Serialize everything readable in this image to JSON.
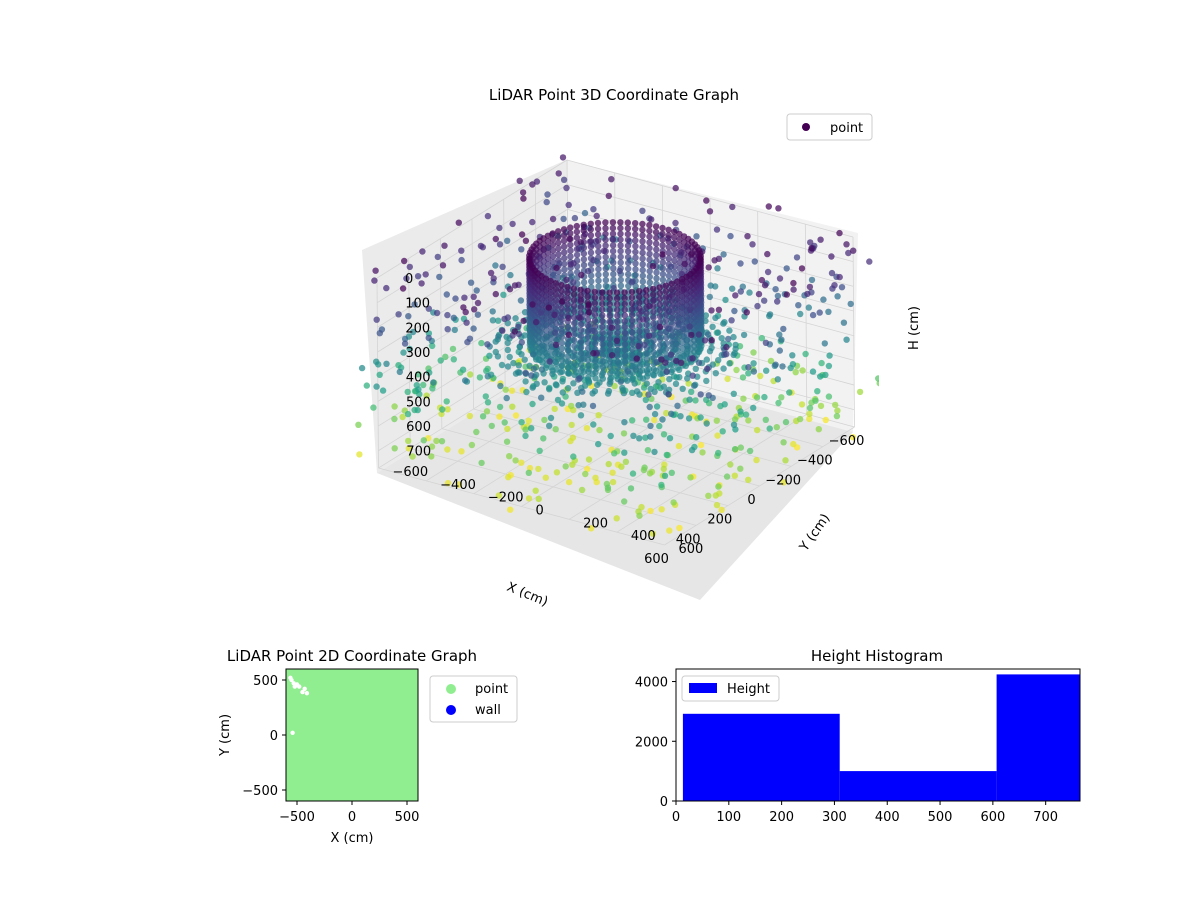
{
  "chart_data": [
    {
      "type": "scatter",
      "projection": "3d",
      "title": "LiDAR Point 3D Coordinate Graph",
      "xlabel": "X (cm)",
      "ylabel": "Y (cm)",
      "zlabel": "H (cm)",
      "x_ticks": [
        "−600",
        "−400",
        "−200",
        "0",
        "200",
        "400",
        "600"
      ],
      "y_ticks": [
        "−600",
        "−400",
        "−200",
        "0",
        "200",
        "400",
        "600"
      ],
      "z_ticks": [
        "0",
        "100",
        "200",
        "300",
        "400",
        "500",
        "600",
        "700"
      ],
      "xlim": [
        -600,
        600
      ],
      "ylim": [
        -600,
        600
      ],
      "zlim": [
        0,
        770
      ],
      "z_inverted": true,
      "grid": true,
      "legend": {
        "position": "top-right",
        "entries": [
          {
            "label": "point",
            "color": "#440154"
          }
        ]
      },
      "colormap": "viridis",
      "structures": [
        {
          "name": "cylinder",
          "center": [
            0,
            0
          ],
          "radius": 300,
          "h_range": [
            0,
            350
          ],
          "columns": 72,
          "levels": 16
        },
        {
          "name": "floor-rays",
          "center": [
            0,
            0
          ],
          "radius": 420,
          "h": 350,
          "rays": 48,
          "points_per_ray": 10
        },
        {
          "name": "scattered-clutter",
          "h_range": [
            0,
            770
          ],
          "count": 900
        }
      ]
    },
    {
      "type": "scatter",
      "title": "LiDAR Point 2D Coordinate Graph",
      "xlabel": "X (cm)",
      "ylabel": "Y (cm)",
      "x_ticks": [
        "−500",
        "0",
        "500"
      ],
      "y_ticks": [
        "−500",
        "0",
        "500"
      ],
      "xlim": [
        -600,
        600
      ],
      "ylim": [
        -600,
        600
      ],
      "series": [
        {
          "name": "point",
          "color": "#90ee90"
        },
        {
          "name": "wall",
          "color": "#0000ff"
        }
      ],
      "gaps": [
        [
          -550,
          500
        ],
        [
          -530,
          470
        ],
        [
          -500,
          460
        ],
        [
          -480,
          440
        ],
        [
          -430,
          420
        ],
        [
          -410,
          380
        ],
        [
          -560,
          520
        ],
        [
          -520,
          440
        ],
        [
          -450,
          390
        ],
        [
          -540,
          20
        ]
      ],
      "legend": {
        "position": "outside-right"
      }
    },
    {
      "type": "bar",
      "title": "Height Histogram",
      "series": [
        {
          "name": "Height",
          "color": "#0000ff"
        }
      ],
      "bins": [
        {
          "from": 13,
          "to": 310,
          "count": 2920
        },
        {
          "from": 310,
          "to": 607,
          "count": 1000
        },
        {
          "from": 607,
          "to": 765,
          "count": 4240
        }
      ],
      "x_ticks": [
        "0",
        "100",
        "200",
        "300",
        "400",
        "500",
        "600",
        "700"
      ],
      "y_ticks": [
        "0",
        "2000",
        "4000"
      ],
      "xlim": [
        0,
        765
      ],
      "ylim": [
        0,
        4420
      ],
      "legend": {
        "position": "top-left"
      }
    }
  ]
}
